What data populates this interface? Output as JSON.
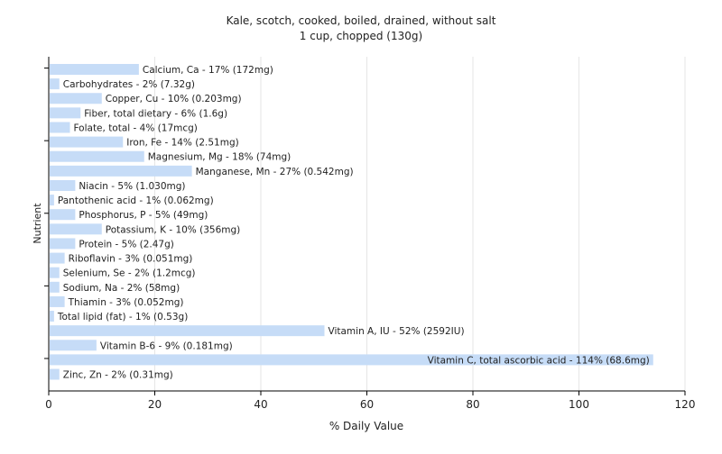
{
  "chart_data": {
    "type": "bar",
    "orientation": "horizontal",
    "title": "Kale, scotch, cooked, boiled, drained, without salt",
    "subtitle": "1 cup, chopped (130g)",
    "xlabel": "% Daily Value",
    "ylabel": "Nutrient",
    "xlim": [
      0,
      120
    ],
    "x_ticks": [
      0,
      20,
      40,
      60,
      80,
      100,
      120
    ],
    "grid": true,
    "bar_color": "#c6dcf7",
    "grid_color": "#e6e6e6",
    "axis_color": "#000000",
    "categories": [
      "Calcium, Ca",
      "Carbohydrates",
      "Copper, Cu",
      "Fiber, total dietary",
      "Folate, total",
      "Iron, Fe",
      "Magnesium, Mg",
      "Manganese, Mn",
      "Niacin",
      "Pantothenic acid",
      "Phosphorus, P",
      "Potassium, K",
      "Protein",
      "Riboflavin",
      "Selenium, Se",
      "Sodium, Na",
      "Thiamin",
      "Total lipid (fat)",
      "Vitamin A, IU",
      "Vitamin B-6",
      "Vitamin C, total ascorbic acid",
      "Zinc, Zn"
    ],
    "values": [
      17,
      2,
      10,
      6,
      4,
      14,
      18,
      27,
      5,
      1,
      5,
      10,
      5,
      3,
      2,
      2,
      3,
      1,
      52,
      9,
      114,
      2
    ],
    "data_labels": [
      "Calcium, Ca - 17% (172mg)",
      "Carbohydrates - 2% (7.32g)",
      "Copper, Cu - 10% (0.203mg)",
      "Fiber, total dietary - 6% (1.6g)",
      "Folate, total - 4% (17mcg)",
      "Iron, Fe - 14% (2.51mg)",
      "Magnesium, Mg - 18% (74mg)",
      "Manganese, Mn - 27% (0.542mg)",
      "Niacin - 5% (1.030mg)",
      "Pantothenic acid - 1% (0.062mg)",
      "Phosphorus, P - 5% (49mg)",
      "Potassium, K - 10% (356mg)",
      "Protein - 5% (2.47g)",
      "Riboflavin - 3% (0.051mg)",
      "Selenium, Se - 2% (1.2mcg)",
      "Sodium, Na - 2% (58mg)",
      "Thiamin - 3% (0.052mg)",
      "Total lipid (fat) - 1% (0.53g)",
      "Vitamin A, IU - 52% (2592IU)",
      "Vitamin B-6 - 9% (0.181mg)",
      "Vitamin C, total ascorbic acid - 114% (68.6mg)",
      "Zinc, Zn - 2% (0.31mg)"
    ]
  }
}
